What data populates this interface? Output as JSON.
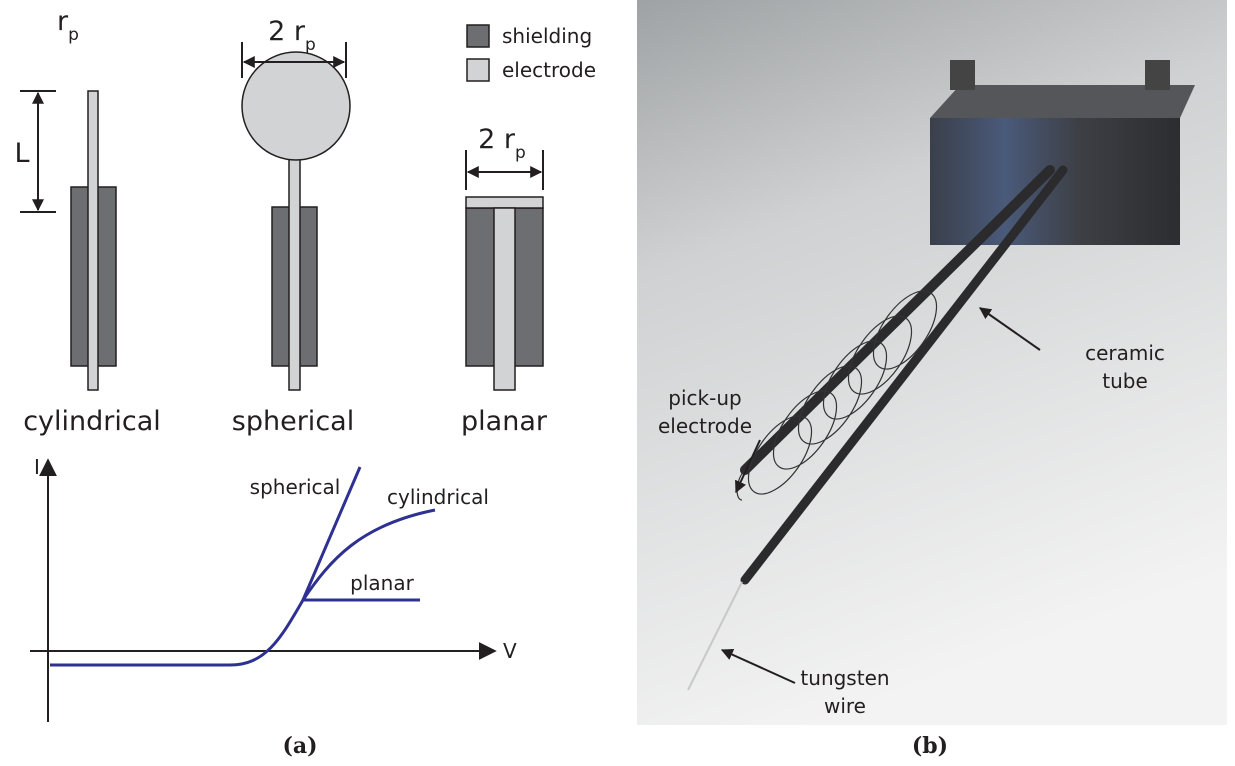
{
  "panel_a": {
    "schematic": {
      "cylinder_radius": {
        "base": "r",
        "sub": "p"
      },
      "sphere_width": {
        "base": "2 r",
        "sub": "p"
      },
      "plane_width": {
        "base": "2 r",
        "sub": "p"
      },
      "length": "L",
      "legend": [
        "shielding",
        "electrode"
      ],
      "labels": [
        "cylindrical",
        "spherical",
        "planar"
      ]
    },
    "iv_plot": {
      "y_axis": "I",
      "x_axis": "V",
      "curves": [
        "spherical",
        "cylindrical",
        "planar"
      ]
    },
    "caption": "(a)"
  },
  "panel_b": {
    "annotations": {
      "ceramic_tube": [
        "ceramic",
        "tube"
      ],
      "pickup_electrode": [
        "pick-up",
        "electrode"
      ],
      "tungsten_wire": [
        "tungsten",
        "wire"
      ]
    },
    "caption": "(b)"
  }
}
